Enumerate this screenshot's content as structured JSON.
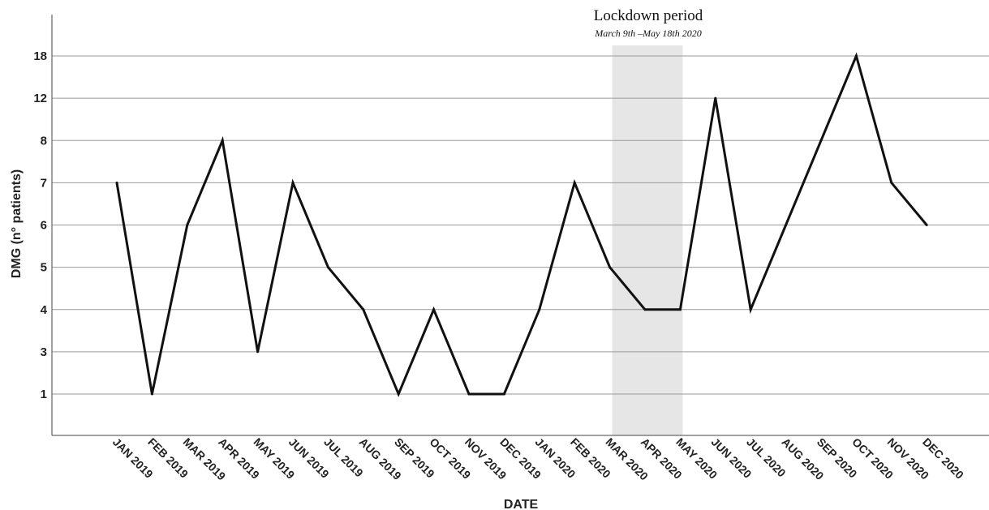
{
  "chart_data": {
    "type": "line",
    "xlabel": "DATE",
    "ylabel": "DMG (n° patients)",
    "y_ticks": [
      "18",
      "12",
      "8",
      "7",
      "6",
      "5",
      "4",
      "3",
      "1"
    ],
    "categories": [
      "JAN 2019",
      "FEB 2019",
      "MAR 2019",
      "APR 2019",
      "MAY 2019",
      "JUN 2019",
      "JUL 2019",
      "AUG 2019",
      "SEP 2019",
      "OCT 2019",
      "NOV 2019",
      "DEC 2019",
      "JAN 2020",
      "FEB 2020",
      "MAR 2020",
      "APR 2020",
      "MAY 2020",
      "JUN 2020",
      "JUL 2020",
      "AUG 2020",
      "SEP 2020",
      "OCT 2020",
      "NOV 2020",
      "DEC 2020"
    ],
    "values": [
      7,
      1,
      6,
      8,
      3,
      7,
      5,
      4,
      1,
      4,
      1,
      1,
      4,
      7,
      5,
      4,
      4,
      12,
      4,
      6,
      8,
      18,
      7,
      6
    ],
    "grid": true,
    "shaded_period": {
      "title": "Lockdown period",
      "subtitle": "March 9th –May 18th 2020",
      "from_category": "MAR 2020",
      "to_category": "MAY 2020",
      "color": "#e6e6e6"
    },
    "line_color": "#111111"
  }
}
